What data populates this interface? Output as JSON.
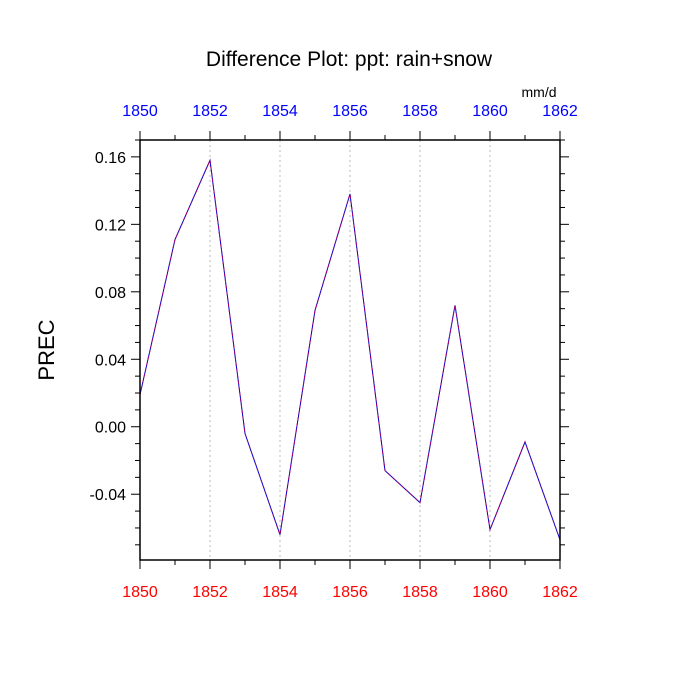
{
  "chart_data": {
    "type": "line",
    "title": "Difference Plot: ppt: rain+snow",
    "units": "mm/d",
    "ylabel": "PREC",
    "xlabel": "",
    "x": [
      1850,
      1851,
      1852,
      1853,
      1854,
      1855,
      1856,
      1857,
      1858,
      1859,
      1860,
      1861,
      1862
    ],
    "series": [
      {
        "values": [
          0.019,
          0.111,
          0.158,
          -0.004,
          -0.064,
          0.069,
          0.138,
          -0.026,
          -0.045,
          0.072,
          -0.061,
          -0.009,
          -0.067
        ]
      }
    ],
    "xlim": [
      1850,
      1862
    ],
    "ylim": [
      -0.079,
      0.17
    ],
    "x_ticks": [
      "1850",
      "1852",
      "1854",
      "1856",
      "1858",
      "1860",
      "1862"
    ],
    "y_ticks": [
      "0.16",
      "0.12",
      "0.08",
      "0.04",
      "0.00",
      "-0.04"
    ],
    "grid": "vertical dotted at major x ticks",
    "colors": {
      "line_primary": "#0000cc",
      "line_overlay": "#aa0066",
      "top_axis_labels": "#0000ff",
      "bottom_axis_labels": "#ff0000",
      "grid": "#bbbbbb"
    }
  }
}
